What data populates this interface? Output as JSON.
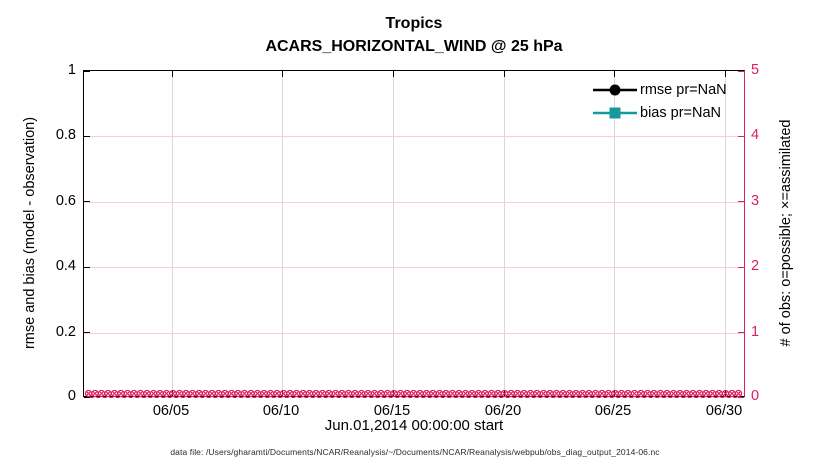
{
  "figure": {
    "title_line1": "Tropics",
    "title_line2": "ACARS_HORIZONTAL_WIND @ 25 hPa",
    "xlabel": "Jun.01,2014 00:00:00 start",
    "ylabel_left": "rmse and bias (model - observation)",
    "ylabel_right": "# of obs: o=possible; ×=assimilated",
    "footer": "data file: /Users/gharamti/Documents/NCAR/Reanalysis/~/Documents/NCAR/Reanalysis/webpub/obs_diag_output_2014-06.nc"
  },
  "legend": {
    "items": [
      {
        "label": "rmse pr=NaN",
        "marker": "circle",
        "color": "#000000"
      },
      {
        "label": "bias pr=NaN",
        "marker": "square",
        "color": "#16999b"
      }
    ]
  },
  "colors": {
    "left_axis": "#000000",
    "right_axis": "#dc1e62",
    "grid_vertical": "#d8d8d8",
    "grid_horizontal": "#f6cfde",
    "obs_markers": "#dc1e62",
    "footer_text": "#2b2b2b"
  },
  "axes": {
    "left": {
      "tick_labels": [
        "1",
        "0.8",
        "0.6",
        "0.4",
        "0.2",
        "0"
      ],
      "range": [
        0,
        1
      ]
    },
    "right": {
      "tick_labels": [
        "5",
        "4",
        "3",
        "2",
        "1",
        "0"
      ],
      "range": [
        0,
        5
      ]
    },
    "x": {
      "tick_labels": [
        "06/05",
        "06/10",
        "06/15",
        "06/20",
        "06/25",
        "06/30"
      ]
    }
  },
  "chart_data": {
    "type": "line",
    "title": "Tropics",
    "subtitle": "ACARS_HORIZONTAL_WIND @ 25 hPa",
    "xlabel": "Jun.01,2014 00:00:00 start",
    "ylabel_left": "rmse and bias (model - observation)",
    "ylabel_right": "# of obs: o=possible; ×=assimilated",
    "x_ticks": [
      "06/05",
      "06/10",
      "06/15",
      "06/20",
      "06/25",
      "06/30"
    ],
    "x_range_days": [
      "2014-06-01",
      "2014-06-30"
    ],
    "ylim_left": [
      0,
      1
    ],
    "ylim_right": [
      0,
      5
    ],
    "grid": true,
    "legend_position": "top-right-inside",
    "series": [
      {
        "name": "rmse pr=NaN",
        "axis": "left",
        "marker": "filled-circle",
        "color": "#000000",
        "values": "all NaN (no curve drawn)"
      },
      {
        "name": "bias pr=NaN",
        "axis": "left",
        "marker": "filled-square",
        "color": "#16999b",
        "values": "all NaN (no curve drawn)"
      },
      {
        "name": "obs possible (o)",
        "axis": "right",
        "marker": "o",
        "color": "#dc1e62",
        "constant_value": 0,
        "note": "dense markers at every time bin across June 2014, all equal 0"
      },
      {
        "name": "obs assimilated (×)",
        "axis": "right",
        "marker": "x",
        "color": "#dc1e62",
        "constant_value": 0,
        "note": "dense markers at every time bin across June 2014, all equal 0"
      }
    ]
  }
}
